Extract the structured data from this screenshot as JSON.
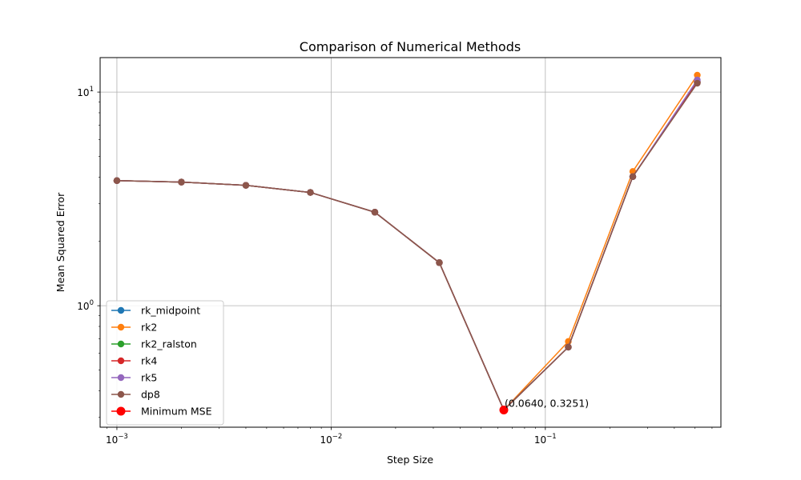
{
  "chart_data": {
    "type": "line",
    "title": "Comparison of Numerical Methods",
    "xlabel": "Step Size",
    "ylabel": "Mean Squared Error",
    "xscale": "log",
    "yscale": "log",
    "xlim": [
      0.000835,
      0.66
    ],
    "ylim": [
      0.27,
      14.5
    ],
    "grid": true,
    "legend_position": "lower-left",
    "x_ticks": [
      {
        "value": 0.001,
        "base": "10",
        "exp": "−3"
      },
      {
        "value": 0.01,
        "base": "10",
        "exp": "−2"
      },
      {
        "value": 0.1,
        "base": "10",
        "exp": "−1"
      }
    ],
    "y_ticks": [
      {
        "value": 1,
        "base": "10",
        "exp": "0"
      },
      {
        "value": 10,
        "base": "10",
        "exp": "1"
      }
    ],
    "x": [
      0.001,
      0.002,
      0.004,
      0.008,
      0.016,
      0.032,
      0.064,
      0.128,
      0.256,
      0.512
    ],
    "series": [
      {
        "name": "rk_midpoint",
        "color": "#1f77b4",
        "values": [
          3.85,
          3.79,
          3.66,
          3.39,
          2.74,
          1.59,
          0.3251,
          0.64,
          4.02,
          11.2
        ]
      },
      {
        "name": "rk2",
        "color": "#ff7f0e",
        "values": [
          3.85,
          3.79,
          3.66,
          3.39,
          2.74,
          1.59,
          0.3251,
          0.68,
          4.25,
          12.0
        ]
      },
      {
        "name": "rk2_ralston",
        "color": "#2ca02c",
        "values": [
          3.85,
          3.79,
          3.66,
          3.39,
          2.74,
          1.59,
          0.3251,
          0.64,
          4.02,
          11.1
        ]
      },
      {
        "name": "rk4",
        "color": "#d62728",
        "values": [
          3.85,
          3.79,
          3.66,
          3.39,
          2.74,
          1.59,
          0.3251,
          0.64,
          4.02,
          11.1
        ]
      },
      {
        "name": "rk5",
        "color": "#9467bd",
        "values": [
          3.85,
          3.79,
          3.66,
          3.39,
          2.74,
          1.59,
          0.3251,
          0.64,
          4.02,
          11.4
        ]
      },
      {
        "name": "dp8",
        "color": "#8c564b",
        "values": [
          3.85,
          3.79,
          3.66,
          3.39,
          2.74,
          1.59,
          0.3251,
          0.64,
          4.02,
          11.0
        ]
      }
    ],
    "minimum": {
      "name": "Minimum MSE",
      "color": "#ff0000",
      "x": 0.064,
      "y": 0.3251,
      "label": "(0.0640, 0.3251)"
    }
  }
}
